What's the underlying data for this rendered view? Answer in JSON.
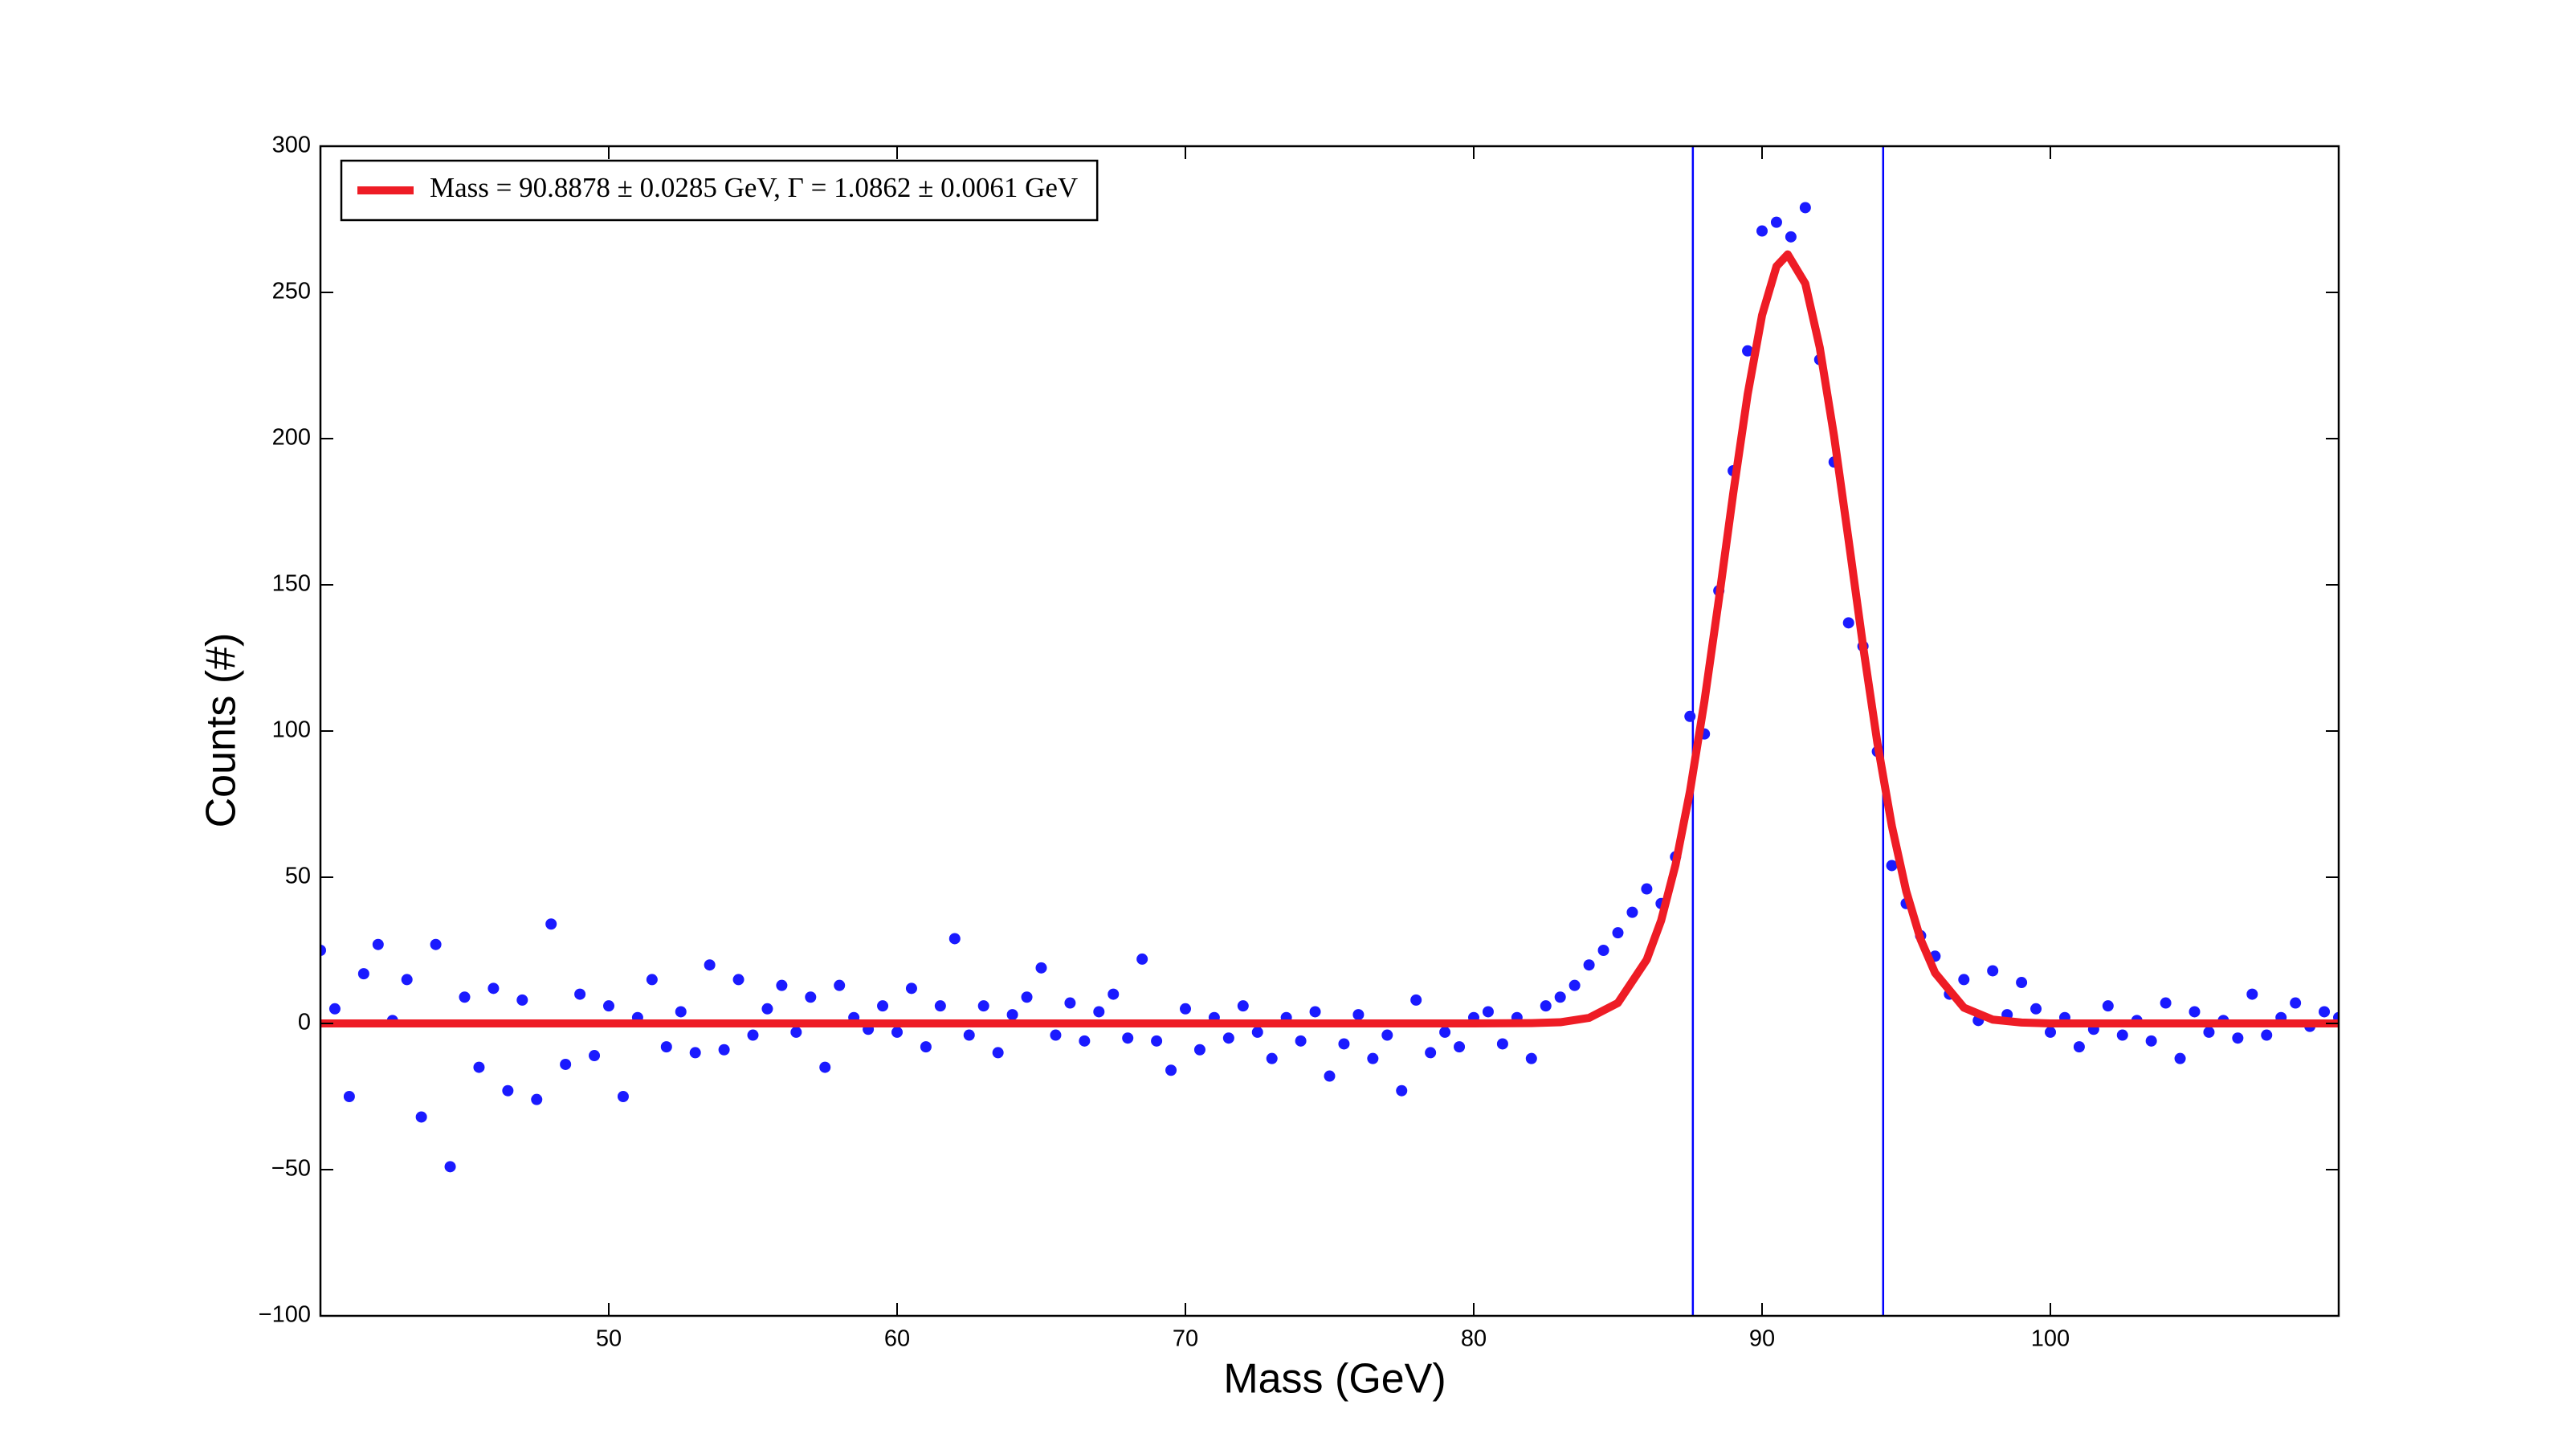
{
  "chart_data": {
    "type": "scatter",
    "x_label": "Mass (GeV)",
    "y_label": "Counts (#)",
    "xlim": [
      40,
      110
    ],
    "ylim": [
      -100,
      300
    ],
    "xticks": [
      50,
      60,
      70,
      80,
      90,
      100
    ],
    "yticks": [
      {
        "value": -100,
        "label": "−100"
      },
      {
        "value": -50,
        "label": "−50"
      },
      0,
      50,
      100,
      150,
      200,
      250,
      300
    ],
    "legend": "upper left",
    "vlines": {
      "color": "#0000ff",
      "values": [
        87.6,
        94.2
      ]
    },
    "series": [
      {
        "type": "scatter",
        "color": "#1a1aff",
        "x": [
          40,
          40.5,
          41,
          41.5,
          42,
          42.5,
          43,
          43.5,
          44,
          44.5,
          45,
          45.5,
          46,
          46.5,
          47,
          47.5,
          48,
          48.5,
          49,
          49.5,
          50,
          50.5,
          51,
          51.5,
          52,
          52.5,
          53,
          53.5,
          54,
          54.5,
          55,
          55.5,
          56,
          56.5,
          57,
          57.5,
          58,
          58.5,
          59,
          59.5,
          60,
          60.5,
          61,
          61.5,
          62,
          62.5,
          63,
          63.5,
          64,
          64.5,
          65,
          65.5,
          66,
          66.5,
          67,
          67.5,
          68,
          68.5,
          69,
          69.5,
          70,
          70.5,
          71,
          71.5,
          72,
          72.5,
          73,
          73.5,
          74,
          74.5,
          75,
          75.5,
          76,
          76.5,
          77,
          77.5,
          78,
          78.5,
          79,
          79.5,
          80,
          80.5,
          81,
          81.5,
          82,
          82.5,
          83,
          83.5,
          84,
          84.5,
          85,
          85.5,
          86,
          86.5,
          87,
          87.5,
          88,
          88.5,
          89,
          89.5,
          90,
          90.5,
          91,
          91.5,
          92,
          92.5,
          93,
          93.5,
          94,
          94.5,
          95,
          95.5,
          96,
          96.5,
          97,
          97.5,
          98,
          98.5,
          99,
          99.5,
          100,
          100.5,
          101,
          101.5,
          102,
          102.5,
          103,
          103.5,
          104,
          104.5,
          105,
          105.5,
          106,
          106.5,
          107,
          107.5,
          108,
          108.5,
          109,
          109.5,
          110
        ],
        "values": [
          25,
          5,
          -25,
          17,
          27,
          1,
          15,
          -32,
          27,
          -49,
          9,
          -15,
          12,
          -23,
          8,
          -26,
          34,
          -14,
          10,
          -11,
          6,
          -25,
          2,
          15,
          -8,
          4,
          -10,
          20,
          -9,
          15,
          -4,
          5,
          13,
          -3,
          9,
          -15,
          13,
          2,
          -2,
          6,
          -3,
          12,
          -8,
          6,
          29,
          -4,
          6,
          -10,
          3,
          9,
          19,
          -4,
          7,
          -6,
          4,
          10,
          -5,
          22,
          -6,
          -16,
          5,
          -9,
          2,
          -5,
          6,
          -3,
          -12,
          2,
          -6,
          4,
          -18,
          -7,
          3,
          -12,
          -4,
          -23,
          8,
          -10,
          -3,
          -8,
          2,
          4,
          -7,
          2,
          -12,
          6,
          9,
          13,
          20,
          25,
          31,
          38,
          46,
          41,
          57,
          105,
          99,
          148,
          189,
          230,
          271,
          274,
          269,
          279,
          227,
          192,
          137,
          129,
          93,
          54,
          41,
          30,
          23,
          10,
          15,
          1,
          18,
          3,
          14,
          5,
          -3,
          2,
          -8,
          -2,
          6,
          -4,
          1,
          -6,
          7,
          -12,
          4,
          -3,
          1,
          -5,
          10,
          -4,
          2,
          7,
          -1,
          4,
          2
        ]
      },
      {
        "type": "line",
        "name": "Mass = 90.8878 ± 0.0285 GeV,  Γ = 1.0862 ± 0.0061 GeV",
        "color": "#ee1c25",
        "x": [
          40,
          80,
          82,
          83,
          84,
          85,
          86,
          86.5,
          87,
          87.5,
          88,
          88.5,
          89,
          89.5,
          90,
          90.5,
          90.89,
          91.5,
          92,
          92.5,
          93,
          93.5,
          94,
          94.5,
          95,
          95.5,
          96,
          97,
          98,
          99,
          100,
          110
        ],
        "values": [
          0,
          0,
          0.1,
          0.4,
          1.9,
          7.0,
          21.8,
          35.2,
          54.3,
          79.4,
          110.1,
          144.9,
          181.3,
          215.1,
          242.2,
          258.9,
          263,
          253.0,
          231.2,
          200.7,
          165.4,
          129.3,
          95.9,
          67.6,
          45.2,
          28.7,
          17.3,
          5.4,
          1.3,
          0.3,
          0,
          0
        ]
      }
    ]
  }
}
